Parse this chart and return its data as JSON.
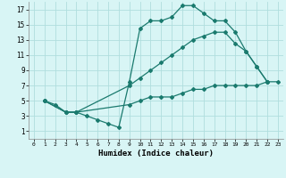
{
  "line1_x": [
    1,
    2,
    3,
    4,
    5,
    6,
    7,
    8,
    9,
    10,
    11,
    12,
    13,
    14,
    15,
    16,
    17,
    18,
    19,
    20,
    21,
    22
  ],
  "line1_y": [
    5,
    4.5,
    3.5,
    3.5,
    3.0,
    2.5,
    2.0,
    1.5,
    7.5,
    14.5,
    15.5,
    15.5,
    16.0,
    17.5,
    17.5,
    16.5,
    15.5,
    15.5,
    14.0,
    11.5,
    9.5,
    7.5
  ],
  "line2_x": [
    1,
    3,
    4,
    9,
    10,
    11,
    12,
    13,
    14,
    15,
    16,
    17,
    18,
    19,
    20,
    21,
    22
  ],
  "line2_y": [
    5,
    3.5,
    3.5,
    7.0,
    8.0,
    9.0,
    10.0,
    11.0,
    12.0,
    13.0,
    13.5,
    14.0,
    14.0,
    12.5,
    11.5,
    9.5,
    7.5
  ],
  "line3_x": [
    1,
    3,
    4,
    9,
    10,
    11,
    12,
    13,
    14,
    15,
    16,
    17,
    18,
    19,
    20,
    21,
    22,
    23
  ],
  "line3_y": [
    5,
    3.5,
    3.5,
    4.5,
    5.0,
    5.5,
    5.5,
    5.5,
    6.0,
    6.5,
    6.5,
    7.0,
    7.0,
    7.0,
    7.0,
    7.0,
    7.5,
    7.5
  ],
  "line_color": "#1a7a6e",
  "bg_color": "#d8f5f5",
  "grid_color": "#b0dede",
  "xlabel": "Humidex (Indice chaleur)",
  "xlim": [
    -0.5,
    23.5
  ],
  "ylim": [
    0,
    18
  ],
  "xticks": [
    0,
    1,
    2,
    3,
    4,
    5,
    6,
    7,
    8,
    9,
    10,
    11,
    12,
    13,
    14,
    15,
    16,
    17,
    18,
    19,
    20,
    21,
    22,
    23
  ],
  "yticks": [
    1,
    3,
    5,
    7,
    9,
    11,
    13,
    15,
    17
  ]
}
